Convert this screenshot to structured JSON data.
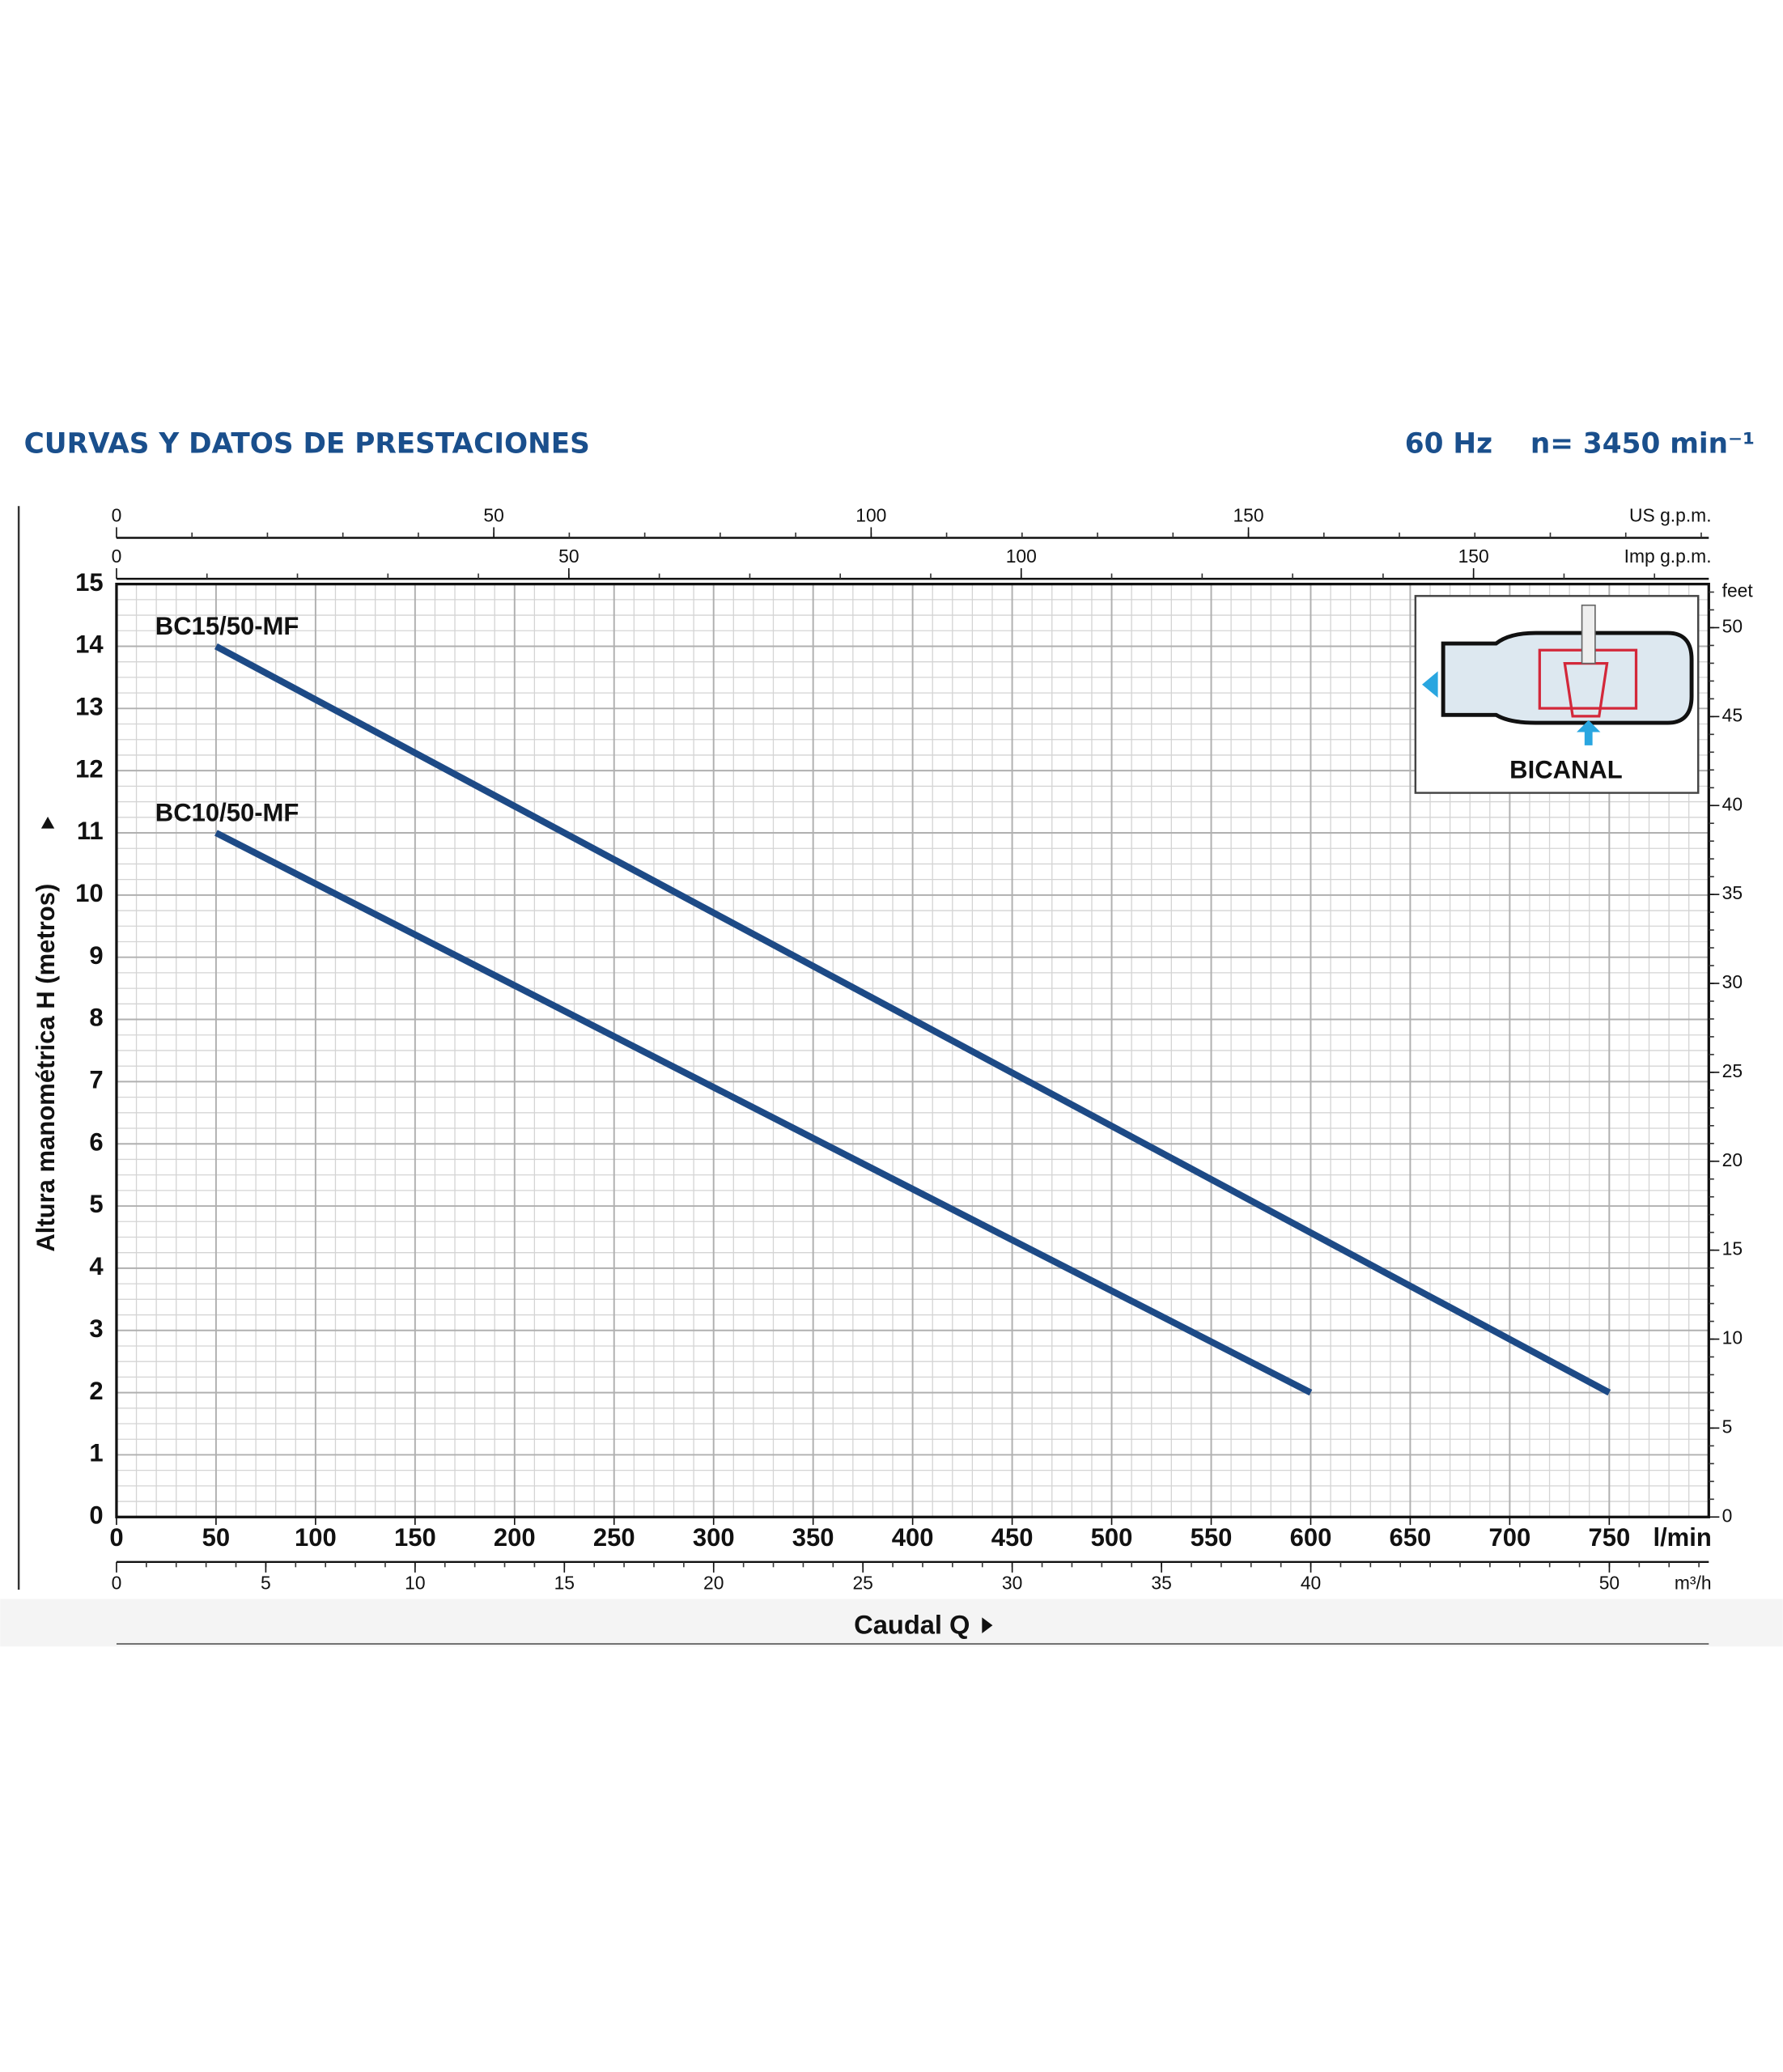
{
  "chart_data": {
    "type": "line",
    "title": "CURVAS Y DATOS DE PRESTACIONES",
    "frequency": "60 Hz",
    "speed": "n= 3450 min⁻¹",
    "ylabel": "Altura manométrica H (metros)",
    "xlabel": "Caudal Q",
    "xunit": "l/min",
    "xlim": [
      0,
      800
    ],
    "xticks": [
      0,
      50,
      100,
      150,
      200,
      250,
      300,
      350,
      400,
      450,
      500,
      550,
      600,
      650,
      700,
      750
    ],
    "ylim": [
      0,
      15
    ],
    "yticks": [
      0,
      1,
      2,
      3,
      4,
      5,
      6,
      7,
      8,
      9,
      10,
      11,
      12,
      13,
      14,
      15
    ],
    "grid": true,
    "x_grid_subdivisions": 5,
    "y_grid_subdivisions": 4,
    "axis_m3h": {
      "label": "m³/h",
      "lim": [
        0,
        53.33
      ],
      "ticks": [
        0,
        5,
        10,
        15,
        20,
        25,
        30,
        35,
        40,
        50
      ],
      "minor_step": 1
    },
    "axis_us_gpm": {
      "label": "US g.p.m.",
      "lim": [
        0,
        211
      ],
      "ticks": [
        0,
        50,
        100,
        150
      ],
      "minor_step": 10
    },
    "axis_imp_gpm": {
      "label": "Imp g.p.m.",
      "lim": [
        0,
        176
      ],
      "ticks": [
        0,
        50,
        100,
        150
      ],
      "minor_step": 10
    },
    "axis_feet": {
      "label": "feet",
      "lim": [
        0,
        52.45
      ],
      "ticks": [
        0,
        5,
        10,
        15,
        20,
        25,
        30,
        35,
        40,
        45,
        50
      ],
      "minor_step": 1
    },
    "inset_label": "BICANAL",
    "series": [
      {
        "name": "BC15/50-MF",
        "color": "#1d4a86",
        "x": [
          50,
          750
        ],
        "values": [
          14,
          2
        ]
      },
      {
        "name": "BC10/50-MF",
        "color": "#1d4a86",
        "x": [
          50,
          600
        ],
        "values": [
          11,
          2
        ]
      }
    ]
  }
}
